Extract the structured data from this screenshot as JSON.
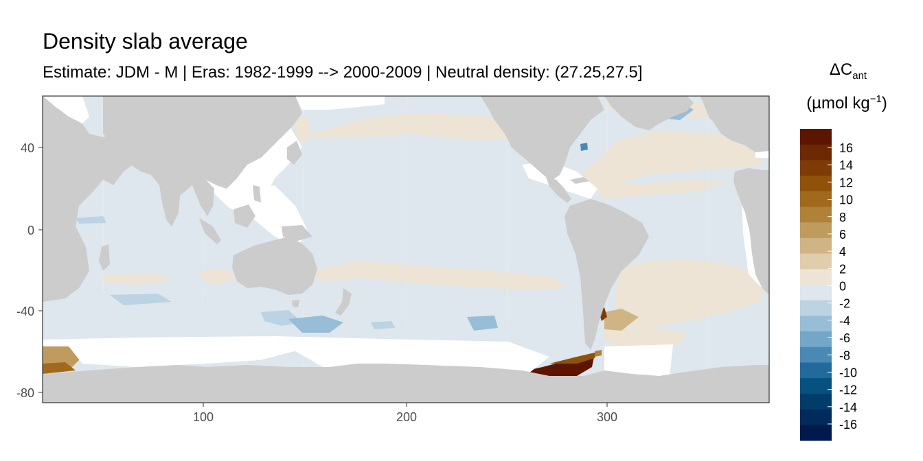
{
  "title": "Density slab average",
  "subtitle": "Estimate: JDM - M | Eras: 1982-1999 --> 2000-2009 | Neutral density: (27.25,27.5]",
  "legend": {
    "title_symbol": "ΔC",
    "title_subscript": "ant",
    "unit_prefix": "(µmol kg",
    "unit_exponent": "−1",
    "unit_suffix": ")",
    "labels": [
      "16",
      "14",
      "12",
      "10",
      "8",
      "6",
      "4",
      "2",
      "0",
      "-2",
      "-4",
      "-6",
      "-8",
      "-10",
      "-12",
      "-14",
      "-16"
    ],
    "colors": [
      "#5c1600",
      "#6d2804",
      "#7f3b06",
      "#905109",
      "#a1691e",
      "#b08238",
      "#bf9b5d",
      "#cfb486",
      "#e0cdac",
      "#ede4d6",
      "#dde7ed",
      "#bbd3e2",
      "#98bdd6",
      "#74a6c8",
      "#4b89b5",
      "#226a9c",
      "#06517f",
      "#003d6a",
      "#002b5c",
      "#001a4e"
    ]
  },
  "axes": {
    "x_ticks": [
      "100",
      "200",
      "300"
    ],
    "y_ticks": [
      "40",
      "0",
      "-40",
      "-80"
    ],
    "x_tick_values": [
      100,
      200,
      300
    ],
    "y_tick_values": [
      40,
      0,
      -40,
      -80
    ],
    "xlim": [
      20,
      380
    ],
    "ylim": [
      -85,
      65
    ]
  },
  "map_colors": {
    "land": "#cccccc",
    "no_data": "#ffffff",
    "ocean_background": "#dde7ed",
    "grid": "#ebebeb",
    "frame": "#333333"
  }
}
